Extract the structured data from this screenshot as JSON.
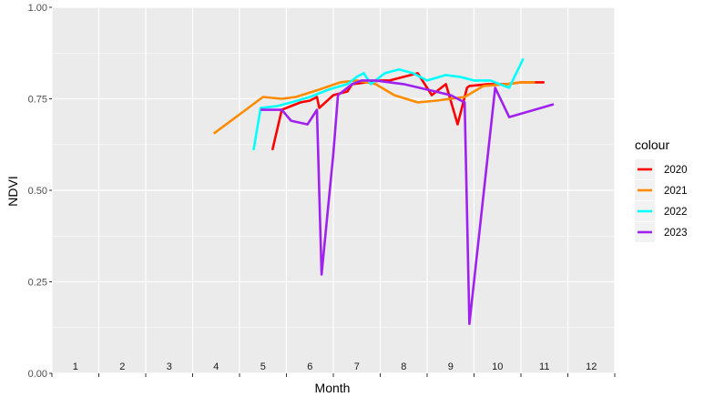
{
  "chart_data": {
    "type": "line",
    "xlabel": "Month",
    "ylabel": "NDVI",
    "ylim": [
      0,
      1
    ],
    "xlim": [
      0.5,
      12.5
    ],
    "y_ticks": [
      "0.00",
      "0.25",
      "0.50",
      "0.75",
      "1.00"
    ],
    "y_tick_values": [
      0,
      0.25,
      0.5,
      0.75,
      1
    ],
    "x_ticks": [
      "1",
      "2",
      "3",
      "4",
      "5",
      "6",
      "7",
      "8",
      "9",
      "10",
      "11",
      "12"
    ],
    "x_tick_values": [
      1,
      2,
      3,
      4,
      5,
      6,
      7,
      8,
      9,
      10,
      11,
      12
    ],
    "x_labels_inside_panel": true,
    "grid": true,
    "panel_background": "#ebebeb",
    "legend": {
      "title": "colour",
      "position": "right"
    },
    "series": [
      {
        "name": "2020",
        "color": "#ff0000",
        "x": [
          5.2,
          5.4,
          5.6,
          5.8,
          6.0,
          6.15,
          6.2,
          6.5,
          6.8,
          6.9,
          7.5,
          7.7,
          8.0,
          8.3,
          8.6,
          8.9,
          9.15,
          9.35,
          9.4,
          9.8,
          10.2,
          10.5,
          11.0
        ],
        "y": [
          0.61,
          0.72,
          0.73,
          0.74,
          0.745,
          0.755,
          0.725,
          0.76,
          0.77,
          0.79,
          0.8,
          0.8,
          0.81,
          0.82,
          0.76,
          0.79,
          0.68,
          0.78,
          0.785,
          0.79,
          0.79,
          0.795,
          0.795
        ]
      },
      {
        "name": "2021",
        "color": "#ff8c00",
        "x": [
          3.95,
          5.0,
          5.4,
          5.7,
          6.2,
          6.65,
          7.0,
          7.4,
          7.8,
          8.3,
          8.7,
          9.0,
          9.3,
          9.7,
          10.2,
          10.5,
          10.8
        ],
        "y": [
          0.655,
          0.755,
          0.75,
          0.755,
          0.775,
          0.795,
          0.8,
          0.79,
          0.76,
          0.74,
          0.745,
          0.75,
          0.755,
          0.785,
          0.79,
          0.795,
          0.795
        ]
      },
      {
        "name": "2022",
        "color": "#00ffff",
        "x": [
          4.8,
          4.95,
          5.3,
          5.6,
          6.0,
          6.4,
          6.8,
          7.0,
          7.15,
          7.3,
          7.6,
          7.9,
          8.2,
          8.5,
          8.9,
          9.2,
          9.5,
          9.85,
          10.25,
          10.55
        ],
        "y": [
          0.61,
          0.725,
          0.73,
          0.74,
          0.755,
          0.775,
          0.79,
          0.81,
          0.82,
          0.79,
          0.82,
          0.83,
          0.82,
          0.8,
          0.815,
          0.81,
          0.8,
          0.8,
          0.78,
          0.86
        ]
      },
      {
        "name": "2023",
        "color": "#a020f0",
        "x": [
          4.95,
          5.4,
          5.6,
          5.95,
          6.15,
          6.25,
          6.5,
          6.6,
          6.9,
          7.1,
          7.4,
          8.0,
          8.5,
          9.0,
          9.3,
          9.4,
          9.95,
          10.25,
          11.2
        ],
        "y": [
          0.72,
          0.72,
          0.69,
          0.68,
          0.72,
          0.27,
          0.6,
          0.76,
          0.79,
          0.8,
          0.8,
          0.79,
          0.775,
          0.76,
          0.74,
          0.135,
          0.78,
          0.7,
          0.735
        ]
      }
    ]
  }
}
